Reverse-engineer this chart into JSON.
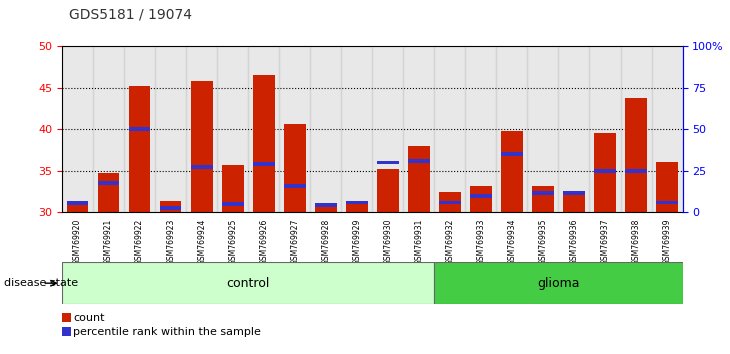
{
  "title": "GDS5181 / 19074",
  "samples": [
    "GSM769920",
    "GSM769921",
    "GSM769922",
    "GSM769923",
    "GSM769924",
    "GSM769925",
    "GSM769926",
    "GSM769927",
    "GSM769928",
    "GSM769929",
    "GSM769930",
    "GSM769931",
    "GSM769932",
    "GSM769933",
    "GSM769934",
    "GSM769935",
    "GSM769936",
    "GSM769937",
    "GSM769938",
    "GSM769939"
  ],
  "count_values": [
    31.2,
    34.7,
    45.2,
    31.4,
    45.8,
    35.7,
    46.5,
    40.6,
    31.1,
    31.3,
    35.2,
    38.0,
    32.5,
    33.2,
    39.8,
    33.2,
    32.5,
    39.5,
    43.8,
    36.0
  ],
  "percentile_values": [
    31.1,
    33.5,
    40.0,
    30.5,
    35.5,
    31.0,
    35.8,
    33.2,
    30.9,
    31.2,
    36.0,
    36.2,
    31.2,
    32.0,
    37.0,
    32.3,
    32.3,
    35.0,
    35.0,
    31.2
  ],
  "ylim_left": [
    30,
    50
  ],
  "yticks_left": [
    30,
    35,
    40,
    45,
    50
  ],
  "ylim_right": [
    0,
    100
  ],
  "yticks_right": [
    0,
    25,
    50,
    75,
    100
  ],
  "ytick_labels_right": [
    "0",
    "25",
    "50",
    "75",
    "100%"
  ],
  "bar_color": "#cc2200",
  "blue_color": "#3333cc",
  "control_color": "#ccffcc",
  "glioma_color": "#44cc44",
  "control_label": "control",
  "glioma_label": "glioma",
  "disease_state_label": "disease state",
  "legend_count": "count",
  "legend_percentile": "percentile rank within the sample",
  "n_control": 12,
  "col_bg_color": "#cccccc",
  "title_color": "#333333",
  "left_axis_color": "red",
  "right_axis_color": "blue"
}
